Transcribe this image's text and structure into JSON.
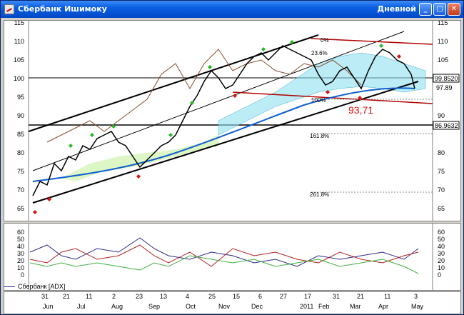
{
  "window": {
    "title": "Сбербанк Ишимоку",
    "interval": "Дневной",
    "buttons": {
      "minimize": "_",
      "maximize": "□",
      "close": "✕"
    }
  },
  "price_axis": {
    "left_ticks": [
      "115",
      "110",
      "105",
      "100",
      "95",
      "90",
      "85",
      "80",
      "75",
      "70",
      "65"
    ],
    "right_ticks": [
      "115",
      "110",
      "105",
      "100",
      "95",
      "90",
      "85",
      "80",
      "75",
      "70",
      "65"
    ]
  },
  "price_labels": {
    "level_high": "99.8520",
    "level_last": "97.89",
    "level_low": "86.9632",
    "low_point": "93,71"
  },
  "fib_labels": {
    "f100": "100%",
    "f1618": "161.8%",
    "f2618": "261.8%",
    "f236": "23.6%",
    "f0": "0%"
  },
  "indicator": {
    "ticks": [
      "60",
      "50",
      "40",
      "30",
      "20",
      "10",
      "0"
    ],
    "legend": "Сбербанк [ADX]"
  },
  "date_axis": {
    "days": [
      "31",
      "21",
      "11",
      "2",
      "23",
      "13",
      "4",
      "25",
      "15",
      "6",
      "27",
      "17",
      "31",
      "21",
      "11",
      "3"
    ],
    "months": [
      "Jun",
      "Jul",
      "Aug",
      "Sep",
      "Oct",
      "Nov",
      "Dec",
      "2011",
      "Feb",
      "Mar",
      "Apr",
      "May"
    ]
  },
  "colors": {
    "price_up": "#000000",
    "green_diamond": "#22bb22",
    "red_diamond": "#dd1111",
    "kumo": "#8fe0f0",
    "ma_blue": "#1060d0",
    "channel": "#000000",
    "red_line": "#a00000"
  }
}
